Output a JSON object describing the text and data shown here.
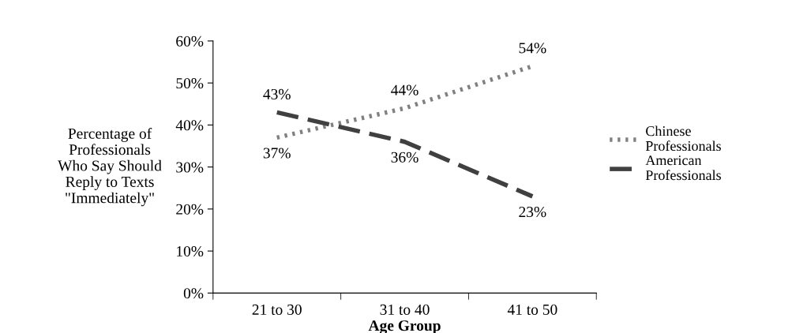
{
  "chart_data": {
    "type": "line",
    "xlabel": "Age Group",
    "ylabel": "Percentage of\nProfessionals\nWho Say Should\nReply to Texts\n\"Immediately\"",
    "categories": [
      "21 to 30",
      "31 to 40",
      "41 to 50"
    ],
    "series": [
      {
        "name": "Chinese\nProfessionals",
        "color": "#808080",
        "line_style": "dotted",
        "values": [
          37,
          44,
          54
        ],
        "value_labels": [
          "37%",
          "44%",
          "54%"
        ]
      },
      {
        "name": "American\nProfessionals",
        "color": "#404040",
        "line_style": "dashed",
        "values": [
          43,
          36,
          23
        ],
        "value_labels": [
          "43%",
          "36%",
          "23%"
        ]
      }
    ],
    "ylim": [
      0,
      60
    ],
    "yticks": [
      {
        "value": 0,
        "label": "0%"
      },
      {
        "value": 10,
        "label": "10%"
      },
      {
        "value": 20,
        "label": "20%"
      },
      {
        "value": 30,
        "label": "30%"
      },
      {
        "value": 40,
        "label": "40%"
      },
      {
        "value": 50,
        "label": "50%"
      },
      {
        "value": 60,
        "label": "60%"
      }
    ],
    "grid": false,
    "legend": "right",
    "marker": "none"
  }
}
